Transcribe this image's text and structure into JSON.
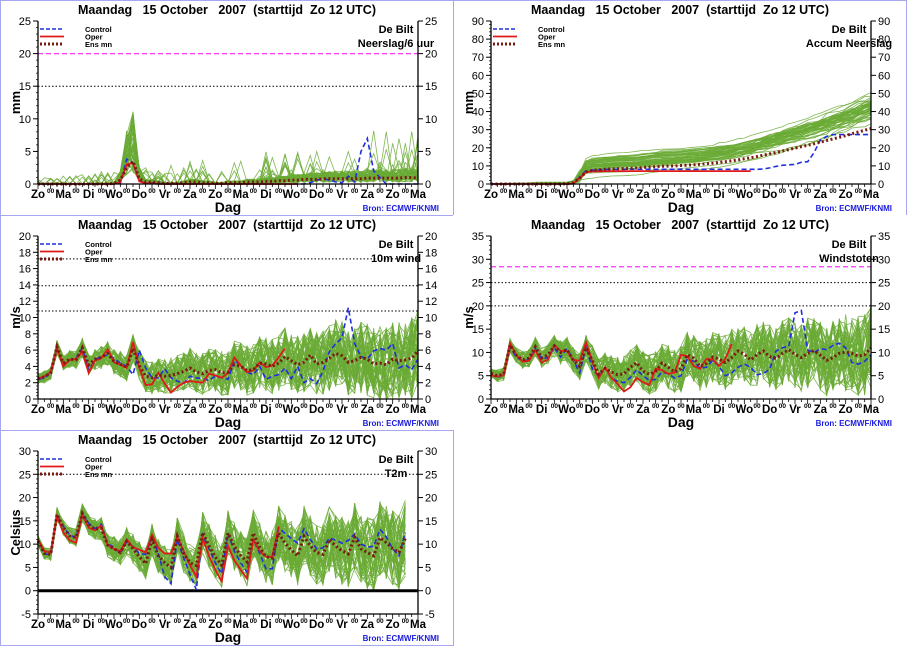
{
  "page": {
    "background": "#ffffff",
    "frame_color": "#a8a8f0"
  },
  "colors": {
    "ensemble": "#6aaa35",
    "control": "#1f2fe0",
    "oper": "#e01a1a",
    "ensmean": "#7a1a10",
    "threshold_magenta": "#ff33ff",
    "threshold_dotted": "#000000",
    "source": "#1a1adf"
  },
  "common": {
    "title": "Maandag   15 October   2007  (starttijd  Zo 12 UTC)",
    "station": "De Bilt",
    "xlabel": "Dag",
    "source": "Bron: ECMWF/KNMI",
    "legend": [
      "Control",
      "Oper",
      "Ens mn"
    ],
    "day_labels": [
      "Zo",
      "Ma",
      "Di",
      "Wo",
      "Do",
      "Vr",
      "Za",
      "Zo",
      "Ma",
      "Di",
      "Wo",
      "Do",
      "Vr",
      "Za",
      "Zo",
      "Ma"
    ],
    "half_label": "00"
  },
  "chart_data": [
    {
      "id": "precip6h",
      "type": "line",
      "title": "Maandag   15 October   2007  (starttijd  Zo 12 UTC)",
      "subtitle": "Neerslag/6 uur",
      "xlabel": "Dag",
      "ylabel": "mm",
      "ylim": [
        0,
        25
      ],
      "yticks": [
        0,
        5,
        10,
        15,
        20,
        25
      ],
      "thresholds": [
        {
          "value": 20,
          "style": "magenta-dashed"
        },
        {
          "value": 15,
          "style": "black-dotted"
        }
      ],
      "legend_position": "top-left",
      "days": 15,
      "series": [
        {
          "name": "Control",
          "values": [
            0,
            0,
            0,
            0,
            0,
            0,
            0,
            0,
            0,
            0,
            0,
            0,
            0,
            0.1,
            3.8,
            3.3,
            0.5,
            0.1,
            0.2,
            0.1,
            0,
            0,
            0,
            0,
            0,
            0,
            0,
            0,
            0,
            0,
            0,
            0,
            0,
            0,
            0,
            0,
            0,
            0,
            0,
            0,
            0,
            0,
            0,
            0.2,
            0.6,
            0.8,
            0.6,
            0.3,
            0.2,
            1.2,
            0.3,
            5.0,
            7.0,
            2.0,
            1.0,
            0,
            0,
            0,
            0,
            0,
            0
          ]
        },
        {
          "name": "Oper",
          "values": [
            0,
            0,
            0,
            0,
            0,
            0,
            0,
            0,
            0,
            0,
            0,
            0,
            0,
            0.3,
            3.0,
            3.2,
            0.4,
            0.1,
            0.1,
            0,
            0,
            0,
            0,
            0,
            0,
            0,
            0,
            0,
            0,
            0,
            0,
            0,
            0,
            0,
            0,
            0,
            0,
            0,
            0,
            0,
            0,
            0
          ]
        },
        {
          "name": "Ens mn",
          "values": [
            0,
            0,
            0,
            0,
            0,
            0,
            0,
            0,
            0,
            0,
            0,
            0,
            0.1,
            0.6,
            2.5,
            3.5,
            0.8,
            0.3,
            0.3,
            0.2,
            0.1,
            0.1,
            0.1,
            0.2,
            0.3,
            0.3,
            0.2,
            0.2,
            0.1,
            0.1,
            0.2,
            0.2,
            0.2,
            0.3,
            0.3,
            0.3,
            0.4,
            0.4,
            0.5,
            0.5,
            0.6,
            0.6,
            0.7,
            0.7,
            0.7,
            0.8,
            0.8,
            0.8,
            0.8,
            0.8,
            0.8,
            0.8,
            0.9,
            0.9,
            0.9,
            0.9,
            0.9,
            0.9,
            1.0,
            1.0,
            0.9
          ]
        }
      ]
    },
    {
      "id": "accum",
      "type": "line",
      "title": "Maandag   15 October   2007  (starttijd  Zo 12 UTC)",
      "subtitle": "Accum Neerslag",
      "xlabel": "Dag",
      "ylabel": "mm",
      "ylim": [
        0,
        90
      ],
      "yticks": [
        0,
        10,
        20,
        30,
        40,
        50,
        60,
        70,
        80,
        90
      ],
      "thresholds": [],
      "legend_position": "top-left",
      "days": 15,
      "series": [
        {
          "name": "Control",
          "values": [
            0,
            0,
            0,
            0,
            0,
            0,
            0,
            0,
            0,
            0,
            0,
            0,
            0,
            0.1,
            3.9,
            7.2,
            7.7,
            7.8,
            8.0,
            8.1,
            8.1,
            8.1,
            8.1,
            8.1,
            8.1,
            8.1,
            8.1,
            8.1,
            8.1,
            8.1,
            8.1,
            8.1,
            8.1,
            8.1,
            8.1,
            8.1,
            8.1,
            8.1,
            8.1,
            8.1,
            8.1,
            8.1,
            8.1,
            8.3,
            8.9,
            9.7,
            10.3,
            10.6,
            10.8,
            12.0,
            12.3,
            17.3,
            24.3,
            26.3,
            27.3,
            27.3,
            27.3,
            27.3,
            27.3,
            27.3,
            27.3
          ]
        },
        {
          "name": "Oper",
          "values": [
            0,
            0,
            0,
            0,
            0,
            0,
            0,
            0,
            0,
            0,
            0,
            0,
            0,
            0.3,
            3.3,
            6.5,
            6.9,
            7.0,
            7.1,
            7.1,
            7.1,
            7.1,
            7.1,
            7.1,
            7.1,
            7.1,
            7.1,
            7.1,
            7.1,
            7.1,
            7.1,
            7.1,
            7.1,
            7.1,
            7.1,
            7.1,
            7.1,
            7.1,
            7.1,
            7.1,
            7.1,
            7.1
          ]
        },
        {
          "name": "Ens mn",
          "values": [
            0,
            0,
            0,
            0,
            0,
            0,
            0,
            0,
            0,
            0,
            0,
            0,
            0.1,
            0.7,
            3.2,
            6.7,
            7.5,
            7.8,
            8.1,
            8.3,
            8.4,
            8.5,
            8.6,
            8.8,
            9.1,
            9.4,
            9.6,
            9.8,
            9.9,
            10.0,
            10.2,
            10.4,
            10.6,
            10.9,
            11.2,
            11.5,
            11.9,
            12.3,
            12.8,
            13.3,
            13.9,
            14.5,
            15.2,
            15.9,
            16.6,
            17.4,
            18.2,
            19.0,
            19.8,
            20.6,
            21.4,
            22.2,
            23.1,
            24.0,
            24.9,
            25.8,
            26.7,
            27.7,
            28.7,
            29.7,
            30.6
          ]
        }
      ]
    },
    {
      "id": "wind10m",
      "type": "line",
      "title": "Maandag   15 October   2007  (starttijd  Zo 12 UTC)",
      "subtitle": "10m wind",
      "xlabel": "Dag",
      "ylabel": "m/s",
      "ylim": [
        0,
        20
      ],
      "yticks": [
        0,
        2,
        4,
        6,
        8,
        10,
        12,
        14,
        16,
        18,
        20
      ],
      "thresholds": [
        {
          "value": 17.2,
          "style": "black-dotted"
        },
        {
          "value": 13.9,
          "style": "black-dotted"
        },
        {
          "value": 10.8,
          "style": "black-dotted"
        }
      ],
      "legend_position": "top-left",
      "days": 15,
      "series": [
        {
          "name": "Control",
          "values": [
            2.4,
            2.6,
            3.2,
            6.2,
            4.2,
            4.8,
            5.0,
            6.3,
            3.5,
            4.8,
            5.2,
            5.4,
            5.0,
            4.4,
            4.0,
            3.0,
            6.0,
            3.8,
            2.6,
            2.6,
            3.7,
            2.6,
            2.2,
            1.9,
            2.8,
            2.6,
            2.5,
            2.3,
            2.8,
            2.6,
            2.4,
            4.7,
            4.2,
            3.3,
            3.0,
            4.0,
            2.4,
            2.8,
            3.0,
            3.8,
            2.5,
            4.0,
            2.0,
            2.5,
            1.9,
            3.4,
            5.8,
            6.8,
            7.5,
            11.2,
            6.8,
            5.2,
            4.9,
            5.9,
            6.2,
            6.0,
            6.8,
            3.8,
            4.2,
            3.6,
            4.9
          ]
        },
        {
          "name": "Oper",
          "values": [
            2.5,
            2.8,
            3.3,
            6.3,
            4.0,
            4.8,
            4.9,
            5.8,
            3.2,
            4.7,
            5.0,
            6.1,
            4.5,
            4.2,
            3.8,
            7.0,
            3.8,
            1.7,
            1.8,
            3.2,
            1.9,
            0.8,
            1.5,
            2.0,
            2.2,
            2.1,
            2.0,
            3.1,
            2.9,
            2.6,
            3.2,
            5.1,
            4.1,
            3.3,
            3.5,
            4.5,
            3.9,
            4.1,
            5.1,
            6.2
          ]
        },
        {
          "name": "Ens mn",
          "values": [
            2.5,
            2.7,
            3.2,
            6.4,
            4.4,
            4.9,
            4.8,
            6.3,
            4.2,
            4.9,
            5.1,
            5.6,
            4.6,
            4.3,
            3.9,
            6.2,
            4.1,
            2.8,
            2.6,
            2.9,
            2.8,
            2.9,
            3.1,
            3.4,
            3.8,
            3.3,
            3.1,
            3.5,
            3.6,
            3.2,
            3.3,
            4.2,
            4.0,
            3.5,
            3.6,
            4.4,
            4.3,
            4.0,
            4.4,
            5.2,
            4.7,
            4.2,
            4.5,
            5.4,
            4.3,
            4.5,
            5.0,
            5.6,
            5.3,
            4.5,
            4.7,
            5.1,
            4.9,
            4.3,
            4.4,
            4.2,
            4.9,
            4.7,
            4.8,
            5.0,
            5.9
          ]
        }
      ]
    },
    {
      "id": "gusts",
      "type": "line",
      "title": "Maandag   15 October   2007  (starttijd  Zo 12 UTC)",
      "subtitle": "Windstoten",
      "xlabel": "Dag",
      "ylabel": "m/s",
      "ylim": [
        0,
        35
      ],
      "yticks": [
        0,
        5,
        10,
        15,
        20,
        25,
        30,
        35
      ],
      "thresholds": [
        {
          "value": 28.4,
          "style": "magenta-dashed"
        },
        {
          "value": 25,
          "style": "black-dotted"
        },
        {
          "value": 20,
          "style": "black-dotted"
        }
      ],
      "legend_position": "none",
      "days": 15,
      "series": [
        {
          "name": "Control",
          "values": [
            5.2,
            4.6,
            5.2,
            11.2,
            9.0,
            8.2,
            8.4,
            10.8,
            8.6,
            8.9,
            11.0,
            9.0,
            10.9,
            8.4,
            5.6,
            11.3,
            6.5,
            4.8,
            6.8,
            4.5,
            3.8,
            3.5,
            4.6,
            6.3,
            5.0,
            4.0,
            4.2,
            5.8,
            5.4,
            4.5,
            5.0,
            8.6,
            8.1,
            6.6,
            6.8,
            8.3,
            7.0,
            5.0,
            5.6,
            6.8,
            7.5,
            6.8,
            5.2,
            5.5,
            6.4,
            10.3,
            11.0,
            11.3,
            18.5,
            19.0,
            10.5,
            10.0,
            10.8,
            10.6,
            11.5,
            12.0,
            11.0,
            7.8,
            7.5,
            8.1,
            9.5
          ]
        },
        {
          "name": "Oper",
          "values": [
            5.1,
            4.8,
            5.1,
            12.0,
            9.5,
            8.0,
            8.2,
            10.5,
            7.8,
            8.5,
            11.6,
            10.3,
            10.3,
            8.4,
            8.2,
            12.2,
            8.0,
            4.5,
            6.8,
            4.6,
            3.2,
            1.6,
            2.5,
            4.5,
            3.6,
            3.0,
            6.5,
            6.2,
            5.4,
            5.7,
            9.5,
            9.2,
            7.1,
            6.5,
            8.6,
            8.5,
            7.1,
            8.6,
            11.8
          ]
        },
        {
          "name": "Ens mn",
          "values": [
            5.5,
            5.0,
            5.4,
            11.6,
            9.4,
            8.4,
            8.8,
            11.2,
            8.8,
            9.5,
            11.4,
            10.0,
            10.6,
            8.3,
            7.0,
            11.0,
            8.3,
            5.3,
            6.6,
            5.8,
            5.2,
            5.4,
            6.8,
            7.8,
            6.0,
            5.3,
            6.0,
            7.7,
            6.8,
            5.8,
            6.5,
            9.5,
            8.8,
            7.0,
            7.6,
            9.0,
            8.6,
            7.8,
            8.9,
            10.3,
            9.6,
            8.4,
            9.5,
            10.3,
            9.1,
            8.7,
            9.8,
            10.6,
            9.6,
            8.9,
            9.8,
            10.4,
            9.4,
            8.3,
            8.9,
            9.8,
            10.1,
            9.8,
            9.2,
            9.5,
            11.0
          ]
        }
      ]
    },
    {
      "id": "t2m",
      "type": "line",
      "title": "Maandag   15 October   2007  (starttijd  Zo 12 UTC)",
      "subtitle": "T2m",
      "xlabel": "Dag",
      "ylabel": "Celsius",
      "ylim": [
        -5,
        30
      ],
      "yticks": [
        -5,
        0,
        5,
        10,
        15,
        20,
        25,
        30
      ],
      "thresholds": [
        {
          "value": 25,
          "style": "black-dotted"
        },
        {
          "value": 0,
          "style": "black-thick"
        }
      ],
      "legend_position": "top-left",
      "days": 15,
      "series": [
        {
          "name": "Control",
          "values": [
            11.0,
            8.0,
            7.6,
            16.2,
            13.8,
            12.0,
            11.3,
            16.5,
            14.5,
            13.3,
            14.3,
            10.0,
            9.4,
            8.0,
            10.5,
            9.5,
            8.0,
            7.8,
            11.6,
            8.0,
            3.0,
            1.5,
            11.0,
            7.0,
            3.5,
            0.2,
            12.0,
            9.0,
            6.0,
            3.6,
            12.3,
            8.5,
            6.0,
            4.0,
            11.0,
            8.0,
            4.7,
            4.7,
            13.5,
            12.3,
            11.2,
            10.2,
            13.3,
            11.0,
            9.0,
            9.2,
            11.3,
            10.9,
            10.2,
            10.8,
            12.2,
            10.0,
            9.4,
            9.5,
            13.2,
            11.5,
            9.0,
            7.5,
            12.5
          ]
        },
        {
          "name": "Oper",
          "values": [
            11.0,
            8.5,
            8.2,
            16.0,
            12.5,
            10.8,
            10.3,
            16.3,
            13.5,
            13.0,
            14.0,
            9.8,
            9.0,
            8.5,
            11.0,
            9.3,
            8.8,
            8.2,
            12.0,
            9.2,
            8.0,
            8.0,
            11.5,
            8.5,
            5.5,
            3.0,
            11.2,
            7.5,
            4.5,
            2.0,
            9.6,
            6.5,
            4.5,
            2.6,
            11.0,
            8.5,
            7.3,
            7.3,
            13.8
          ]
        },
        {
          "name": "Ens mn",
          "values": [
            10.7,
            8.0,
            7.8,
            16.4,
            13.6,
            11.8,
            11.4,
            16.6,
            14.2,
            13.2,
            13.4,
            9.8,
            9.0,
            8.2,
            10.6,
            9.0,
            7.3,
            5.8,
            11.0,
            7.5,
            6.0,
            5.0,
            11.7,
            8.0,
            6.0,
            5.4,
            12.5,
            9.6,
            7.2,
            5.5,
            12.4,
            9.5,
            7.6,
            6.2,
            12.4,
            9.3,
            7.3,
            7.0,
            12.4,
            10.2,
            8.7,
            7.5,
            11.7,
            9.6,
            8.2,
            7.8,
            11.0,
            9.6,
            8.6,
            7.9,
            11.5,
            9.0,
            8.2,
            7.5,
            11.4,
            10.3,
            9.0,
            8.2,
            11.2
          ]
        }
      ]
    }
  ]
}
